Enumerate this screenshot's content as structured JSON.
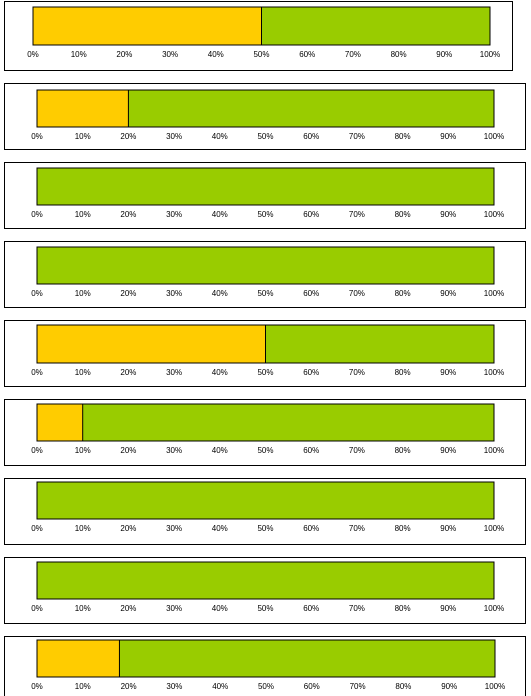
{
  "colors": {
    "completed": "#ffcc00",
    "remaining": "#99cc00",
    "outline": "#000000",
    "frame": "#000000",
    "background": "#ffffff"
  },
  "chart_data": [
    {
      "type": "bar",
      "orientation": "horizontal",
      "stacked": true,
      "xlim": [
        0,
        100
      ],
      "tick_labels": [
        "0%",
        "10%",
        "20%",
        "30%",
        "40%",
        "50%",
        "60%",
        "70%",
        "80%",
        "90%",
        "100%"
      ],
      "series": [
        {
          "values": [
            50
          ]
        },
        {
          "values": [
            50
          ]
        }
      ]
    },
    {
      "type": "bar",
      "orientation": "horizontal",
      "stacked": true,
      "xlim": [
        0,
        100
      ],
      "tick_labels": [
        "0%",
        "10%",
        "20%",
        "30%",
        "40%",
        "50%",
        "60%",
        "70%",
        "80%",
        "90%",
        "100%"
      ],
      "series": [
        {
          "values": [
            20
          ]
        },
        {
          "values": [
            80
          ]
        }
      ]
    },
    {
      "type": "bar",
      "orientation": "horizontal",
      "stacked": true,
      "xlim": [
        0,
        100
      ],
      "tick_labels": [
        "0%",
        "10%",
        "20%",
        "30%",
        "40%",
        "50%",
        "60%",
        "70%",
        "80%",
        "90%",
        "100%"
      ],
      "series": [
        {
          "values": [
            0
          ]
        },
        {
          "values": [
            100
          ]
        }
      ]
    },
    {
      "type": "bar",
      "orientation": "horizontal",
      "stacked": true,
      "xlim": [
        0,
        100
      ],
      "tick_labels": [
        "0%",
        "10%",
        "20%",
        "30%",
        "40%",
        "50%",
        "60%",
        "70%",
        "80%",
        "90%",
        "100%"
      ],
      "series": [
        {
          "values": [
            0
          ]
        },
        {
          "values": [
            100
          ]
        }
      ]
    },
    {
      "type": "bar",
      "orientation": "horizontal",
      "stacked": true,
      "xlim": [
        0,
        100
      ],
      "tick_labels": [
        "0%",
        "10%",
        "20%",
        "30%",
        "40%",
        "50%",
        "60%",
        "70%",
        "80%",
        "90%",
        "100%"
      ],
      "series": [
        {
          "values": [
            50
          ]
        },
        {
          "values": [
            50
          ]
        }
      ]
    },
    {
      "type": "bar",
      "orientation": "horizontal",
      "stacked": true,
      "xlim": [
        0,
        100
      ],
      "tick_labels": [
        "0%",
        "10%",
        "20%",
        "30%",
        "40%",
        "50%",
        "60%",
        "70%",
        "80%",
        "90%",
        "100%"
      ],
      "series": [
        {
          "values": [
            10
          ]
        },
        {
          "values": [
            90
          ]
        }
      ]
    },
    {
      "type": "bar",
      "orientation": "horizontal",
      "stacked": true,
      "xlim": [
        0,
        100
      ],
      "tick_labels": [
        "0%",
        "10%",
        "20%",
        "30%",
        "40%",
        "50%",
        "60%",
        "70%",
        "80%",
        "90%",
        "100%"
      ],
      "series": [
        {
          "values": [
            0
          ]
        },
        {
          "values": [
            100
          ]
        }
      ]
    },
    {
      "type": "bar",
      "orientation": "horizontal",
      "stacked": true,
      "xlim": [
        0,
        100
      ],
      "tick_labels": [
        "0%",
        "10%",
        "20%",
        "30%",
        "40%",
        "50%",
        "60%",
        "70%",
        "80%",
        "90%",
        "100%"
      ],
      "series": [
        {
          "values": [
            0
          ]
        },
        {
          "values": [
            100
          ]
        }
      ]
    },
    {
      "type": "bar",
      "orientation": "horizontal",
      "stacked": true,
      "xlim": [
        0,
        100
      ],
      "tick_labels": [
        "0%",
        "10%",
        "20%",
        "30%",
        "40%",
        "50%",
        "60%",
        "70%",
        "80%",
        "90%",
        "100%"
      ],
      "series": [
        {
          "values": [
            18
          ]
        },
        {
          "values": [
            82
          ]
        }
      ]
    }
  ]
}
